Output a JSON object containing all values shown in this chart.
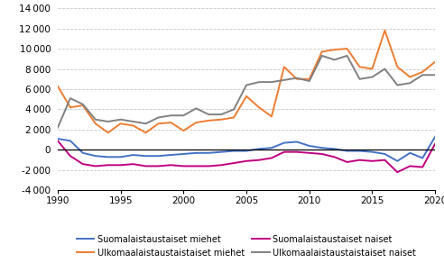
{
  "years": [
    1990,
    1991,
    1992,
    1993,
    1994,
    1995,
    1996,
    1997,
    1998,
    1999,
    2000,
    2001,
    2002,
    2003,
    2004,
    2005,
    2006,
    2007,
    2008,
    2009,
    2010,
    2011,
    2012,
    2013,
    2014,
    2015,
    2016,
    2017,
    2018,
    2019,
    2020
  ],
  "suom_miehet": [
    1100,
    900,
    -300,
    -600,
    -700,
    -700,
    -500,
    -600,
    -600,
    -500,
    -400,
    -300,
    -300,
    -200,
    -100,
    -100,
    100,
    200,
    700,
    800,
    400,
    200,
    100,
    -100,
    -100,
    -200,
    -400,
    -1100,
    -300,
    -800,
    1300
  ],
  "ulkom_miehet": [
    6300,
    4200,
    4400,
    2600,
    1700,
    2600,
    2400,
    1700,
    2600,
    2700,
    1900,
    2700,
    2900,
    3000,
    3200,
    5300,
    4200,
    3300,
    8200,
    7000,
    7000,
    9700,
    9900,
    10000,
    8200,
    8000,
    11800,
    8200,
    7200,
    7700,
    8700
  ],
  "suom_naiset": [
    900,
    -600,
    -1400,
    -1600,
    -1500,
    -1500,
    -1400,
    -1600,
    -1600,
    -1500,
    -1600,
    -1600,
    -1600,
    -1500,
    -1300,
    -1100,
    -1000,
    -800,
    -200,
    -200,
    -300,
    -400,
    -700,
    -1200,
    -1000,
    -1100,
    -1000,
    -2200,
    -1600,
    -1700,
    600
  ],
  "ulkom_naiset": [
    2200,
    5100,
    4500,
    3000,
    2800,
    3000,
    2800,
    2600,
    3200,
    3400,
    3400,
    4100,
    3500,
    3500,
    4000,
    6400,
    6700,
    6700,
    6900,
    7100,
    6800,
    9300,
    8900,
    9300,
    7000,
    7200,
    8000,
    6400,
    6600,
    7400,
    7400
  ],
  "colors": {
    "suom_miehet": "#4472c4",
    "ulkom_miehet": "#ed7d31",
    "suom_naiset": "#c00080",
    "ulkom_naiset": "#808080"
  },
  "legend_labels": {
    "suom_miehet": "Suomalaistaustaiset miehet",
    "ulkom_miehet": "Ulkomaalaistaustaistaiset miehet",
    "suom_naiset": "Suomalaistaustaiset naiset",
    "ulkom_naiset": "Ulkomaalaistaustaistaiset naiset"
  },
  "ylim": [
    -4000,
    14000
  ],
  "yticks": [
    -4000,
    -2000,
    0,
    2000,
    4000,
    6000,
    8000,
    10000,
    12000,
    14000
  ],
  "xticks": [
    1990,
    1995,
    2000,
    2005,
    2010,
    2015,
    2020
  ],
  "background_color": "#ffffff",
  "grid_color": "#c8c8c8",
  "linewidth": 1.4
}
